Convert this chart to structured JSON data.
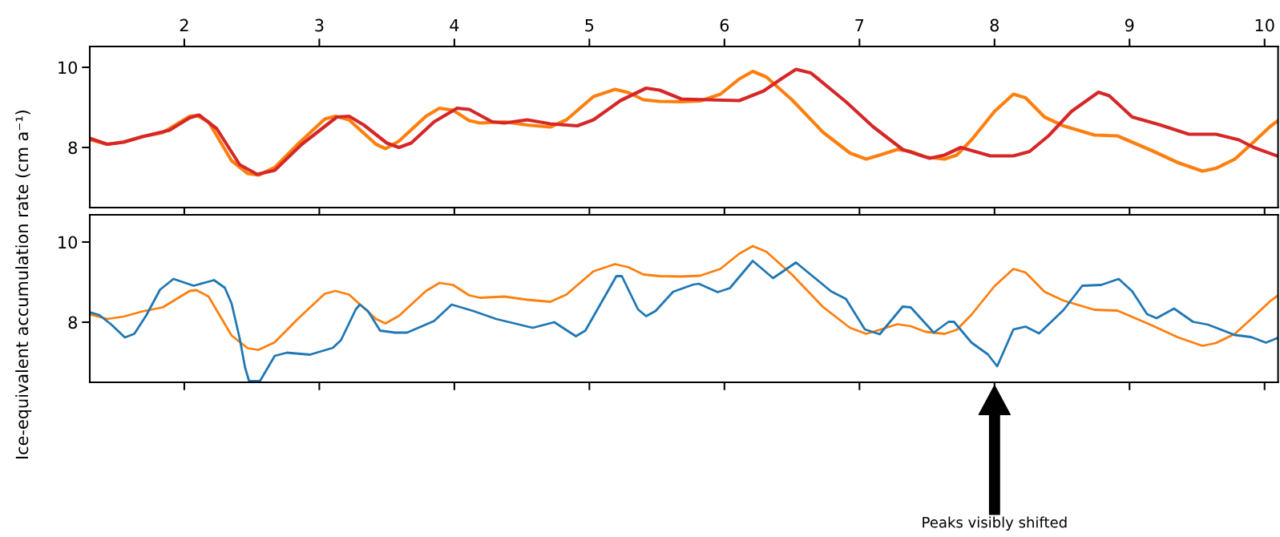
{
  "chart_data": [
    {
      "type": "line",
      "ylabel": "Ice-equivalent accumulation rate (cm a⁻¹)",
      "xlim": [
        1.3,
        10.1
      ],
      "xticks": [
        2,
        3,
        4,
        5,
        6,
        7,
        8,
        9,
        10
      ],
      "ylim": [
        6.5,
        10.52
      ],
      "yticks": [
        8,
        10
      ],
      "grid": false,
      "series": [
        {
          "color": "#ff7f0e",
          "x": [
            1.3,
            1.43,
            1.55,
            1.69,
            1.84,
            2.04,
            2.09,
            2.18,
            2.35,
            2.47,
            2.55,
            2.67,
            2.84,
            3.04,
            3.12,
            3.22,
            3.42,
            3.49,
            3.59,
            3.79,
            3.89,
            3.99,
            4.11,
            4.19,
            4.37,
            4.54,
            4.71,
            4.83,
            5.03,
            5.19,
            5.29,
            5.4,
            5.52,
            5.68,
            5.82,
            5.97,
            6.11,
            6.21,
            6.31,
            6.5,
            6.73,
            6.93,
            7.05,
            7.15,
            7.28,
            7.38,
            7.49,
            7.63,
            7.72,
            7.83,
            8.0,
            8.14,
            8.23,
            8.37,
            8.51,
            8.74,
            8.91,
            9.16,
            9.36,
            9.54,
            9.64,
            9.78,
            9.92,
            10.04,
            10.1
          ],
          "values": [
            8.2,
            8.08,
            8.14,
            8.27,
            8.37,
            8.78,
            8.8,
            8.64,
            7.67,
            7.35,
            7.31,
            7.5,
            8.08,
            8.71,
            8.78,
            8.69,
            8.08,
            7.97,
            8.16,
            8.78,
            8.98,
            8.93,
            8.67,
            8.61,
            8.64,
            8.56,
            8.51,
            8.69,
            9.27,
            9.45,
            9.37,
            9.19,
            9.15,
            9.14,
            9.16,
            9.33,
            9.71,
            9.9,
            9.76,
            9.19,
            8.38,
            7.86,
            7.71,
            7.81,
            7.95,
            7.9,
            7.76,
            7.71,
            7.81,
            8.19,
            8.9,
            9.33,
            9.24,
            8.76,
            8.54,
            8.31,
            8.29,
            7.93,
            7.62,
            7.41,
            7.48,
            7.71,
            8.14,
            8.52,
            8.67
          ]
        },
        {
          "color": "#d62728",
          "x": [
            1.3,
            1.43,
            1.55,
            1.69,
            1.89,
            2.04,
            2.11,
            2.24,
            2.41,
            2.54,
            2.67,
            2.87,
            3.13,
            3.22,
            3.33,
            3.5,
            3.59,
            3.68,
            3.85,
            4.02,
            4.11,
            4.28,
            4.37,
            4.54,
            4.71,
            4.91,
            5.03,
            5.23,
            5.42,
            5.52,
            5.66,
            5.68,
            5.88,
            6.11,
            6.29,
            6.42,
            6.53,
            6.64,
            6.9,
            7.1,
            7.32,
            7.52,
            7.63,
            7.75,
            7.97,
            8.14,
            8.26,
            8.4,
            8.57,
            8.77,
            8.85,
            9.02,
            9.22,
            9.44,
            9.64,
            9.81,
            9.92,
            10.1
          ],
          "values": [
            8.23,
            8.08,
            8.13,
            8.27,
            8.43,
            8.74,
            8.81,
            8.47,
            7.57,
            7.33,
            7.43,
            8.08,
            8.76,
            8.78,
            8.56,
            8.11,
            8.0,
            8.11,
            8.64,
            8.98,
            8.95,
            8.64,
            8.61,
            8.69,
            8.59,
            8.54,
            8.69,
            9.17,
            9.48,
            9.43,
            9.24,
            9.21,
            9.19,
            9.17,
            9.41,
            9.71,
            9.95,
            9.86,
            9.14,
            8.52,
            7.95,
            7.73,
            7.81,
            8.0,
            7.79,
            7.79,
            7.9,
            8.29,
            8.9,
            9.38,
            9.29,
            8.76,
            8.57,
            8.33,
            8.33,
            8.19,
            8.0,
            7.78
          ]
        }
      ]
    },
    {
      "type": "line",
      "xlim": [
        1.3,
        10.1
      ],
      "xticks": [
        2,
        3,
        4,
        5,
        6,
        7,
        8,
        9,
        10
      ],
      "tick_labels": "y",
      "ylim": [
        6.5,
        10.68
      ],
      "yticks": [
        8,
        10
      ],
      "grid": false,
      "annotations": [
        "Peaks visibly shifted"
      ],
      "series": [
        {
          "color": "#ff7f0e",
          "x": [
            1.3,
            1.43,
            1.55,
            1.69,
            1.84,
            2.04,
            2.09,
            2.18,
            2.35,
            2.47,
            2.55,
            2.67,
            2.84,
            3.04,
            3.12,
            3.22,
            3.42,
            3.49,
            3.59,
            3.79,
            3.89,
            3.99,
            4.11,
            4.19,
            4.37,
            4.54,
            4.71,
            4.83,
            5.03,
            5.19,
            5.29,
            5.4,
            5.52,
            5.68,
            5.82,
            5.97,
            6.11,
            6.21,
            6.31,
            6.5,
            6.73,
            6.93,
            7.05,
            7.15,
            7.28,
            7.38,
            7.49,
            7.63,
            7.72,
            7.83,
            8.0,
            8.14,
            8.23,
            8.37,
            8.51,
            8.74,
            8.91,
            9.16,
            9.36,
            9.54,
            9.64,
            9.78,
            9.92,
            10.04,
            10.1
          ],
          "values": [
            8.2,
            8.08,
            8.14,
            8.27,
            8.37,
            8.78,
            8.8,
            8.64,
            7.67,
            7.35,
            7.31,
            7.5,
            8.08,
            8.71,
            8.78,
            8.69,
            8.08,
            7.97,
            8.16,
            8.78,
            8.98,
            8.93,
            8.67,
            8.61,
            8.64,
            8.56,
            8.51,
            8.69,
            9.27,
            9.45,
            9.37,
            9.19,
            9.15,
            9.14,
            9.16,
            9.33,
            9.71,
            9.9,
            9.76,
            9.19,
            8.38,
            7.86,
            7.71,
            7.81,
            7.95,
            7.9,
            7.76,
            7.71,
            7.81,
            8.19,
            8.9,
            9.33,
            9.24,
            8.76,
            8.54,
            8.31,
            8.29,
            7.93,
            7.62,
            7.41,
            7.48,
            7.71,
            8.14,
            8.52,
            8.67
          ]
        },
        {
          "color": "#1f77b4",
          "x": [
            1.3,
            1.37,
            1.46,
            1.56,
            1.63,
            1.72,
            1.82,
            1.92,
            2.07,
            2.22,
            2.3,
            2.35,
            2.41,
            2.45,
            2.48,
            2.56,
            2.67,
            2.76,
            2.93,
            3.1,
            3.16,
            3.27,
            3.3,
            3.36,
            3.45,
            3.56,
            3.65,
            3.85,
            3.98,
            4.14,
            4.31,
            4.58,
            4.74,
            4.9,
            4.97,
            5.2,
            5.24,
            5.36,
            5.42,
            5.49,
            5.62,
            5.77,
            5.81,
            5.95,
            6.04,
            6.21,
            6.36,
            6.53,
            6.79,
            6.9,
            7.04,
            7.15,
            7.32,
            7.38,
            7.55,
            7.66,
            7.7,
            7.83,
            7.95,
            8.02,
            8.14,
            8.23,
            8.33,
            8.51,
            8.65,
            8.79,
            8.92,
            9.02,
            9.13,
            9.2,
            9.33,
            9.47,
            9.58,
            9.78,
            9.9,
            10.01,
            10.1
          ],
          "values": [
            8.25,
            8.18,
            7.94,
            7.62,
            7.71,
            8.18,
            8.81,
            9.08,
            8.91,
            9.05,
            8.86,
            8.47,
            7.6,
            6.87,
            6.53,
            6.53,
            7.16,
            7.24,
            7.19,
            7.36,
            7.55,
            8.32,
            8.44,
            8.28,
            7.79,
            7.74,
            7.74,
            8.03,
            8.44,
            8.28,
            8.08,
            7.86,
            8.0,
            7.65,
            7.79,
            9.15,
            9.15,
            8.32,
            8.15,
            8.28,
            8.76,
            8.94,
            8.96,
            8.75,
            8.85,
            9.53,
            9.1,
            9.49,
            8.77,
            8.58,
            7.82,
            7.7,
            8.39,
            8.37,
            7.74,
            8.01,
            8.01,
            7.49,
            7.2,
            6.9,
            7.82,
            7.89,
            7.72,
            8.3,
            8.91,
            8.93,
            9.08,
            8.77,
            8.2,
            8.1,
            8.34,
            8.01,
            7.94,
            7.68,
            7.63,
            7.49,
            7.61
          ]
        }
      ]
    }
  ]
}
